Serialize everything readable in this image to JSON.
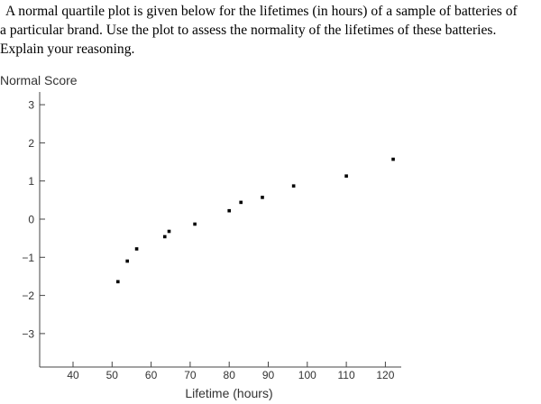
{
  "question": {
    "lines": [
      "A normal quartile plot is given below for the lifetimes (in hours) of a sample of batteries of",
      "a particular brand. Use the plot to assess the normality of the lifetimes of these batteries.",
      "Explain your reasoning."
    ]
  },
  "chart_data": {
    "type": "scatter",
    "title": "",
    "xlabel": "Lifetime (hours)",
    "ylabel": "Normal Score",
    "xlim": [
      35,
      125
    ],
    "ylim": [
      -3.9,
      3.3
    ],
    "xticks": [
      40,
      50,
      60,
      70,
      80,
      90,
      100,
      110,
      120
    ],
    "yticks": [
      3,
      2,
      1,
      0,
      -1,
      -2,
      -3
    ],
    "ytick_labels": [
      "3",
      "2",
      "1",
      "0",
      "−1",
      "−2",
      "−3"
    ],
    "grid": false,
    "series": [
      {
        "marker": "square",
        "color": "#000000",
        "points": [
          {
            "x": 51.5,
            "y": -1.64
          },
          {
            "x": 53.9,
            "y": -1.1
          },
          {
            "x": 56.3,
            "y": -0.78
          },
          {
            "x": 63.5,
            "y": -0.46
          },
          {
            "x": 64.6,
            "y": -0.32
          },
          {
            "x": 71.2,
            "y": -0.13
          },
          {
            "x": 80.0,
            "y": 0.22
          },
          {
            "x": 83.0,
            "y": 0.44
          },
          {
            "x": 88.5,
            "y": 0.57
          },
          {
            "x": 96.5,
            "y": 0.87
          },
          {
            "x": 110.0,
            "y": 1.13
          },
          {
            "x": 122.0,
            "y": 1.57
          }
        ]
      }
    ]
  }
}
